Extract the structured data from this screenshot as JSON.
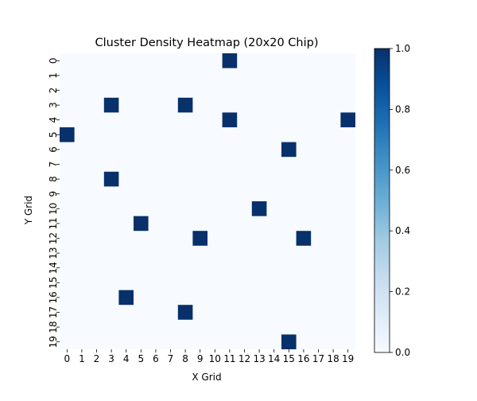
{
  "chart_data": {
    "type": "heatmap",
    "title": "Cluster Density Heatmap (20x20 Chip)",
    "xlabel": "X Grid",
    "ylabel": "Y Grid",
    "x_categories": [
      "0",
      "1",
      "2",
      "3",
      "4",
      "5",
      "6",
      "7",
      "8",
      "9",
      "10",
      "11",
      "12",
      "13",
      "14",
      "15",
      "16",
      "17",
      "18",
      "19"
    ],
    "y_categories": [
      "0",
      "1",
      "2",
      "3",
      "4",
      "5",
      "6",
      "7",
      "8",
      "9",
      "10",
      "11",
      "12",
      "13",
      "14",
      "15",
      "16",
      "17",
      "18",
      "19"
    ],
    "value_range": [
      0,
      1
    ],
    "colormap": {
      "low": "#f7fbff",
      "high": "#08306b",
      "name": "Blues"
    },
    "default_value": 0,
    "cells": [
      {
        "x": 11,
        "y": 0,
        "value": 1
      },
      {
        "x": 3,
        "y": 3,
        "value": 1
      },
      {
        "x": 8,
        "y": 3,
        "value": 1
      },
      {
        "x": 11,
        "y": 4,
        "value": 1
      },
      {
        "x": 19,
        "y": 4,
        "value": 1
      },
      {
        "x": 0,
        "y": 5,
        "value": 1
      },
      {
        "x": 15,
        "y": 6,
        "value": 1
      },
      {
        "x": 3,
        "y": 8,
        "value": 1
      },
      {
        "x": 13,
        "y": 10,
        "value": 1
      },
      {
        "x": 5,
        "y": 11,
        "value": 1
      },
      {
        "x": 9,
        "y": 12,
        "value": 1
      },
      {
        "x": 16,
        "y": 12,
        "value": 1
      },
      {
        "x": 4,
        "y": 16,
        "value": 1
      },
      {
        "x": 8,
        "y": 17,
        "value": 1
      },
      {
        "x": 15,
        "y": 19,
        "value": 1
      }
    ],
    "colorbar_ticks": [
      "0.0",
      "0.2",
      "0.4",
      "0.6",
      "0.8",
      "1.0"
    ],
    "colorbar_tick_values": [
      0,
      0.2,
      0.4,
      0.6,
      0.8,
      1.0
    ],
    "grid": false
  }
}
